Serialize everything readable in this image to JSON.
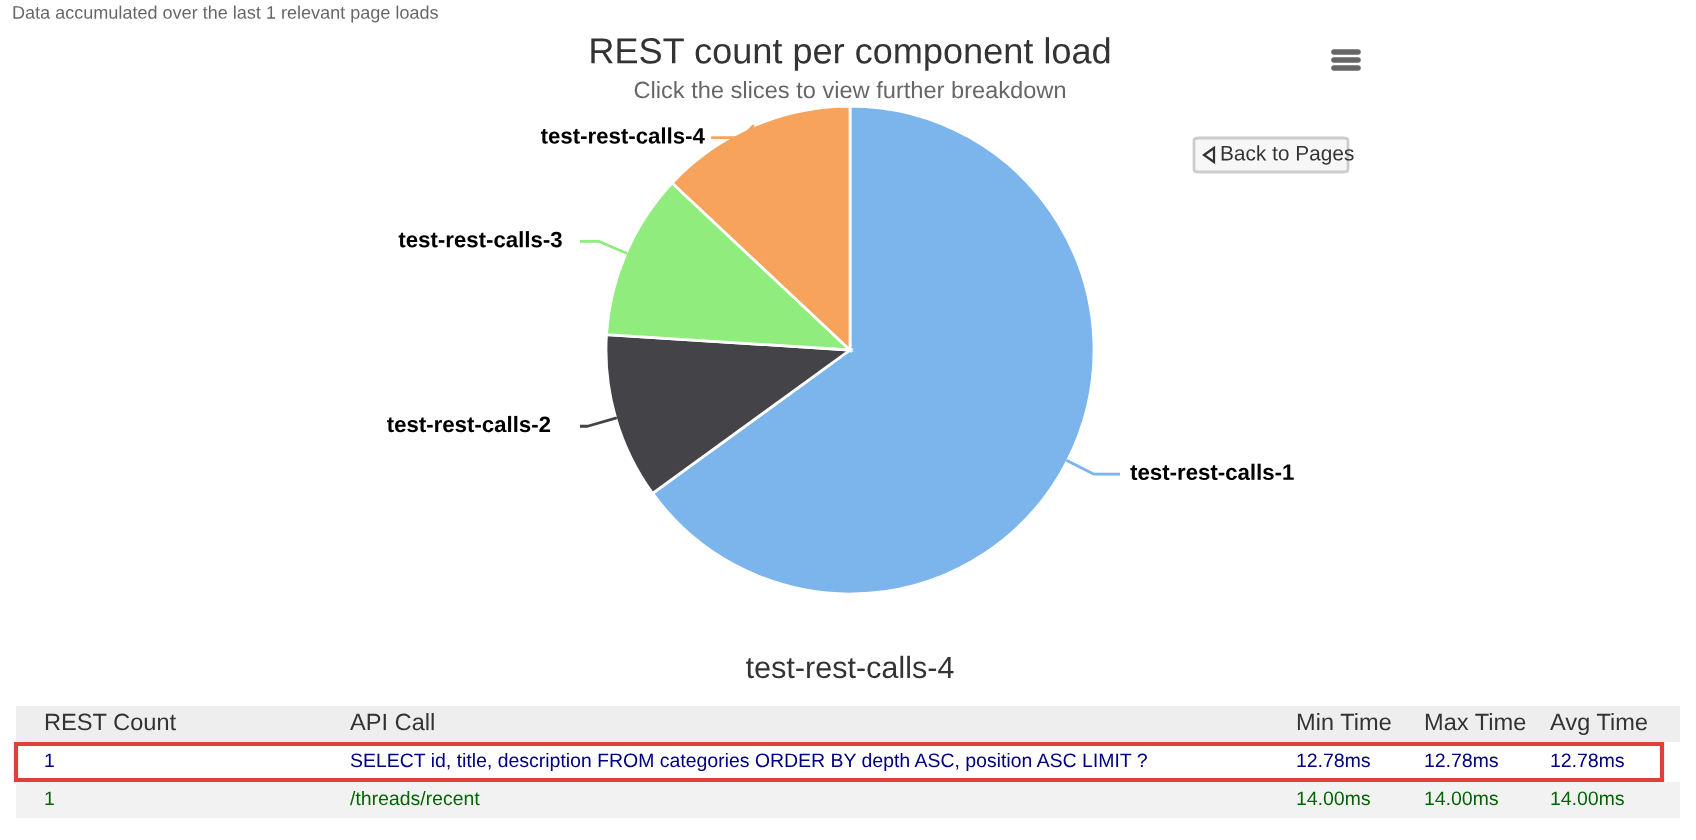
{
  "chart_data": {
    "type": "pie",
    "title": "REST count per component load",
    "subtitle": "Click the slices to view further breakdown",
    "categories": [
      "test-rest-calls-1",
      "test-rest-calls-2",
      "test-rest-calls-3",
      "test-rest-calls-4"
    ],
    "values": [
      65,
      11,
      11,
      13
    ],
    "colors": [
      "#7cb5ec",
      "#434348",
      "#90ed7d",
      "#f7a35c"
    ],
    "annotations": [
      "Data accumulated over the last 1 relevant page loads",
      "Back to Pages",
      "test-rest-calls-4",
      "REST Count",
      "API Call",
      "Min Time",
      "Max Time",
      "Avg Time",
      "1",
      "SELECT id, title, description FROM categories ORDER BY depth ASC, position ASC LIMIT ?",
      "12.78ms",
      "12.78ms",
      "12.78ms",
      "1",
      "/threads/recent",
      "14.00ms",
      "14.00ms",
      "14.00ms"
    ]
  }
}
